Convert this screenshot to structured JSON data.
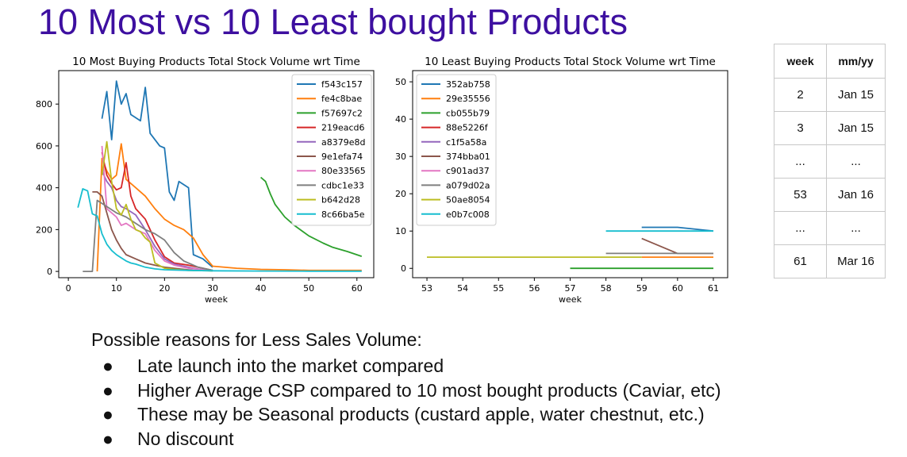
{
  "page": {
    "title": "10 Most vs 10 Least bought Products"
  },
  "chart_data": [
    {
      "type": "line",
      "title": "10 Most Buying Products Total Stock Volume wrt Time",
      "xlabel": "week",
      "ylabel": "",
      "xlim": [
        -2,
        63.5
      ],
      "ylim": [
        -30,
        960
      ],
      "xticks": [
        0,
        10,
        20,
        30,
        40,
        50,
        60
      ],
      "yticks": [
        0,
        200,
        400,
        600,
        800
      ],
      "legend": "top-right",
      "series": [
        {
          "name": "f543c157",
          "color": "#1f77b4",
          "x": [
            7,
            8,
            9,
            10,
            11,
            12,
            13,
            15,
            16,
            17,
            19,
            20,
            21,
            22,
            23,
            25,
            26,
            28,
            30
          ],
          "y": [
            730,
            860,
            630,
            910,
            800,
            850,
            750,
            720,
            880,
            660,
            600,
            590,
            380,
            340,
            430,
            400,
            80,
            60,
            20
          ]
        },
        {
          "name": "fe4c8bae",
          "color": "#ff7f0e",
          "x": [
            6,
            7,
            8,
            9,
            10,
            11,
            12,
            14,
            16,
            18,
            20,
            22,
            24,
            26,
            28,
            30,
            35,
            40,
            45,
            50,
            55,
            61
          ],
          "y": [
            0,
            540,
            480,
            440,
            460,
            610,
            440,
            400,
            360,
            300,
            250,
            220,
            200,
            160,
            80,
            25,
            15,
            10,
            8,
            5,
            5,
            5
          ]
        },
        {
          "name": "f57697c2",
          "color": "#2ca02c",
          "x": [
            40,
            41,
            42,
            43,
            45,
            47,
            50,
            53,
            55,
            58,
            61
          ],
          "y": [
            450,
            430,
            370,
            320,
            260,
            220,
            170,
            135,
            115,
            95,
            72
          ]
        },
        {
          "name": "219eacd6",
          "color": "#d62728",
          "x": [
            7,
            8,
            9,
            10,
            11,
            12,
            13,
            14,
            16,
            18,
            20,
            22,
            25,
            28,
            30
          ],
          "y": [
            570,
            460,
            420,
            390,
            400,
            520,
            360,
            300,
            250,
            150,
            70,
            40,
            30,
            15,
            5
          ]
        },
        {
          "name": "a8379e8d",
          "color": "#9467bd",
          "x": [
            7,
            8,
            9,
            10,
            11,
            12,
            14,
            16,
            18,
            20,
            22,
            24,
            26,
            28,
            30
          ],
          "y": [
            480,
            430,
            400,
            340,
            310,
            300,
            270,
            200,
            120,
            60,
            35,
            25,
            15,
            8,
            5
          ]
        },
        {
          "name": "9e1efa74",
          "color": "#8c564b",
          "x": [
            5,
            6,
            7,
            8,
            9,
            10,
            11,
            12,
            14,
            16,
            18,
            20,
            22,
            24,
            26,
            28,
            30
          ],
          "y": [
            380,
            380,
            360,
            280,
            200,
            150,
            110,
            80,
            60,
            40,
            30,
            20,
            15,
            10,
            5,
            5,
            3
          ]
        },
        {
          "name": "80e33565",
          "color": "#e377c2",
          "x": [
            7,
            8,
            9,
            10,
            11,
            12,
            14,
            16,
            18,
            20,
            22,
            25,
            28,
            30
          ],
          "y": [
            600,
            300,
            280,
            260,
            220,
            230,
            200,
            180,
            100,
            50,
            30,
            15,
            8,
            5
          ]
        },
        {
          "name": "cdbc1e33",
          "color": "#7f7f7f",
          "x": [
            3,
            4,
            5,
            6,
            8,
            10,
            12,
            14,
            16,
            18,
            20,
            22,
            24,
            27,
            30
          ],
          "y": [
            0,
            0,
            0,
            340,
            310,
            280,
            260,
            230,
            200,
            180,
            150,
            90,
            50,
            20,
            5
          ]
        },
        {
          "name": "b642d28",
          "color": "#bcbd22",
          "x": [
            7,
            8,
            9,
            10,
            11,
            12,
            13,
            14,
            15,
            16,
            17,
            18,
            20,
            22,
            25,
            30
          ],
          "y": [
            460,
            620,
            430,
            300,
            270,
            320,
            250,
            200,
            190,
            160,
            140,
            40,
            15,
            10,
            5,
            3
          ]
        },
        {
          "name": "8c66ba5e",
          "color": "#17becf",
          "x": [
            2,
            3,
            4,
            5,
            6,
            7,
            8,
            9,
            10,
            11,
            12,
            13,
            14,
            16,
            18,
            20,
            25,
            30,
            40,
            50,
            61
          ],
          "y": [
            305,
            395,
            385,
            275,
            265,
            180,
            130,
            100,
            80,
            65,
            50,
            40,
            35,
            20,
            12,
            8,
            5,
            3,
            2,
            1,
            1
          ]
        }
      ]
    },
    {
      "type": "line",
      "title": "10 Least Buying Products Total Stock Volume wrt Time",
      "xlabel": "week",
      "ylabel": "",
      "xlim": [
        52.6,
        61.4
      ],
      "ylim": [
        -2.5,
        53
      ],
      "xticks": [
        53,
        54,
        55,
        56,
        57,
        58,
        59,
        60,
        61
      ],
      "yticks": [
        0,
        10,
        20,
        30,
        40,
        50
      ],
      "legend": "top-left",
      "series": [
        {
          "name": "352ab758",
          "color": "#1f77b4",
          "x": [
            59,
            60,
            61
          ],
          "y": [
            11,
            11,
            10
          ]
        },
        {
          "name": "29e35556",
          "color": "#ff7f0e",
          "x": [
            59,
            60,
            61
          ],
          "y": [
            3,
            3,
            3
          ]
        },
        {
          "name": "cb055b79",
          "color": "#2ca02c",
          "x": [
            57,
            58,
            59,
            60,
            61
          ],
          "y": [
            0,
            0,
            0,
            0,
            0
          ]
        },
        {
          "name": "88e5226f",
          "color": "#d62728",
          "x": [],
          "y": []
        },
        {
          "name": "c1f5a58a",
          "color": "#9467bd",
          "x": [],
          "y": []
        },
        {
          "name": "374bba01",
          "color": "#8c564b",
          "x": [
            59,
            60,
            61
          ],
          "y": [
            8,
            4,
            4
          ]
        },
        {
          "name": "c901ad37",
          "color": "#e377c2",
          "x": [],
          "y": []
        },
        {
          "name": "a079d02a",
          "color": "#7f7f7f",
          "x": [
            58,
            59,
            60,
            61
          ],
          "y": [
            4,
            4,
            4,
            4
          ]
        },
        {
          "name": "50ae8054",
          "color": "#bcbd22",
          "x": [
            53,
            54,
            55,
            56,
            57,
            58,
            59
          ],
          "y": [
            3,
            3,
            3,
            3,
            3,
            3,
            3
          ]
        },
        {
          "name": "e0b7c008",
          "color": "#17becf",
          "x": [
            58,
            59,
            60,
            61
          ],
          "y": [
            10,
            10,
            10,
            10
          ]
        }
      ]
    }
  ],
  "lookup_table": {
    "headers": [
      "week",
      "mm/yy"
    ],
    "rows": [
      [
        "2",
        "Jan 15"
      ],
      [
        "3",
        "Jan 15"
      ],
      [
        "...",
        "..."
      ],
      [
        "53",
        "Jan 16"
      ],
      [
        "...",
        "..."
      ],
      [
        "61",
        "Mar 16"
      ]
    ]
  },
  "reasons": {
    "heading": "Possible reasons for Less Sales Volume:",
    "bullet": "●",
    "items": [
      "Late launch into the market compared",
      "Higher Average CSP compared to 10 most bought products (Caviar, etc)",
      "These may be Seasonal products (custard apple, water chestnut, etc.)",
      "No discount"
    ]
  }
}
